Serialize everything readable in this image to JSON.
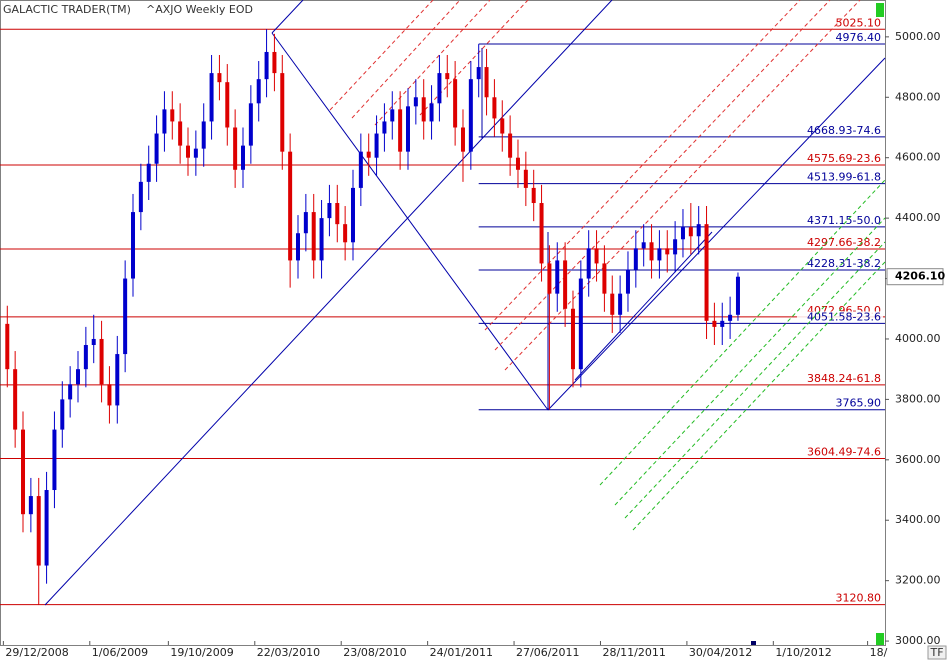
{
  "chart_data": {
    "type": "candlestick",
    "title": "GALACTIC TRADER(TM)",
    "subtitle": "^AXJO Weekly EOD",
    "up_color": "#0000cc",
    "down_color": "#dd0000",
    "x": [
      "2009-01-05",
      "2009-01-19",
      "2009-02-02",
      "2009-02-16",
      "2009-03-02",
      "2009-03-16",
      "2009-03-30",
      "2009-04-13",
      "2009-04-27",
      "2009-05-11",
      "2009-05-25",
      "2009-06-08",
      "2009-06-22",
      "2009-07-06",
      "2009-07-20",
      "2009-08-03",
      "2009-08-17",
      "2009-08-31",
      "2009-09-14",
      "2009-09-28",
      "2009-10-12",
      "2009-10-26",
      "2009-11-09",
      "2009-11-23",
      "2009-12-07",
      "2009-12-21",
      "2010-01-04",
      "2010-01-18",
      "2010-02-01",
      "2010-02-15",
      "2010-03-01",
      "2010-03-15",
      "2010-03-29",
      "2010-04-12",
      "2010-04-26",
      "2010-05-10",
      "2010-05-24",
      "2010-06-07",
      "2010-06-21",
      "2010-07-05",
      "2010-07-19",
      "2010-08-02",
      "2010-08-16",
      "2010-08-30",
      "2010-09-13",
      "2010-09-27",
      "2010-10-11",
      "2010-10-25",
      "2010-11-08",
      "2010-11-22",
      "2010-12-06",
      "2010-12-20",
      "2011-01-03",
      "2011-01-17",
      "2011-01-31",
      "2011-02-14",
      "2011-02-28",
      "2011-03-14",
      "2011-03-28",
      "2011-04-11",
      "2011-04-25",
      "2011-05-09",
      "2011-05-23",
      "2011-06-06",
      "2011-06-20",
      "2011-07-04",
      "2011-07-18",
      "2011-08-01",
      "2011-08-15",
      "2011-08-29",
      "2011-09-12",
      "2011-09-26",
      "2011-10-10",
      "2011-10-24",
      "2011-11-07",
      "2011-11-21",
      "2011-12-05",
      "2011-12-19",
      "2012-01-02",
      "2012-01-16",
      "2012-01-30",
      "2012-02-13",
      "2012-02-27",
      "2012-03-12",
      "2012-03-26",
      "2012-04-09",
      "2012-04-23",
      "2012-05-07",
      "2012-05-21",
      "2012-06-04",
      "2012-06-18",
      "2012-07-02",
      "2012-07-16",
      "2012-07-30"
    ],
    "open": [
      4050,
      3900,
      3700,
      3420,
      3480,
      3250,
      3500,
      3700,
      3800,
      3850,
      3900,
      3980,
      4000,
      3850,
      3780,
      3950,
      4200,
      4420,
      4520,
      4580,
      4680,
      4760,
      4720,
      4640,
      4600,
      4630,
      4720,
      4880,
      4850,
      4700,
      4560,
      4640,
      4780,
      4860,
      4950,
      4880,
      4620,
      4260,
      4350,
      4420,
      4260,
      4400,
      4450,
      4380,
      4320,
      4500,
      4620,
      4600,
      4680,
      4720,
      4760,
      4620,
      4770,
      4800,
      4720,
      4780,
      4880,
      4860,
      4700,
      4620,
      4860,
      4900,
      4800,
      4730,
      4680,
      4600,
      4560,
      4500,
      4450,
      4250,
      4150,
      4260,
      4100,
      3900,
      4200,
      4300,
      4250,
      4150,
      4080,
      4150,
      4230,
      4300,
      4320,
      4260,
      4300,
      4280,
      4330,
      4370,
      4340,
      4380,
      4060,
      4040,
      4060,
      4080
    ],
    "high": [
      4110,
      3960,
      3760,
      3540,
      3540,
      3560,
      3760,
      3860,
      3910,
      3960,
      4040,
      4080,
      4060,
      3910,
      4010,
      4260,
      4480,
      4580,
      4640,
      4740,
      4820,
      4820,
      4780,
      4700,
      4690,
      4780,
      4940,
      4940,
      4910,
      4760,
      4700,
      4840,
      4920,
      5025,
      5010,
      4940,
      4680,
      4410,
      4480,
      4480,
      4460,
      4510,
      4510,
      4440,
      4560,
      4680,
      4680,
      4740,
      4780,
      4820,
      4820,
      4830,
      4860,
      4860,
      4840,
      4940,
      4940,
      4920,
      4760,
      4920,
      4976,
      4960,
      4860,
      4790,
      4740,
      4660,
      4620,
      4560,
      4510,
      4310,
      4320,
      4320,
      4160,
      4260,
      4360,
      4360,
      4310,
      4210,
      4210,
      4290,
      4360,
      4380,
      4380,
      4360,
      4360,
      4390,
      4430,
      4450,
      4440,
      4440,
      4120,
      4120,
      4140,
      4220
    ],
    "low": [
      3840,
      3640,
      3360,
      3360,
      3121,
      3190,
      3440,
      3640,
      3740,
      3790,
      3840,
      3920,
      3790,
      3720,
      3720,
      3890,
      4140,
      4360,
      4460,
      4520,
      4620,
      4660,
      4580,
      4540,
      4540,
      4570,
      4660,
      4790,
      4640,
      4500,
      4500,
      4580,
      4720,
      4800,
      4820,
      4560,
      4170,
      4200,
      4290,
      4200,
      4200,
      4340,
      4320,
      4260,
      4260,
      4440,
      4540,
      4540,
      4620,
      4660,
      4560,
      4560,
      4710,
      4660,
      4660,
      4720,
      4800,
      4640,
      4520,
      4560,
      4800,
      4740,
      4670,
      4620,
      4540,
      4500,
      4440,
      4390,
      4190,
      3766,
      4090,
      4040,
      3840,
      3840,
      4140,
      4190,
      4090,
      4020,
      4020,
      4090,
      4170,
      4240,
      4200,
      4200,
      4220,
      4220,
      4270,
      4280,
      4280,
      4000,
      3980,
      3980,
      4000,
      4060
    ],
    "close": [
      3900,
      3700,
      3420,
      3480,
      3250,
      3500,
      3700,
      3800,
      3850,
      3900,
      3980,
      4000,
      3850,
      3780,
      3950,
      4200,
      4420,
      4520,
      4580,
      4680,
      4760,
      4720,
      4640,
      4600,
      4630,
      4720,
      4880,
      4850,
      4700,
      4560,
      4640,
      4780,
      4860,
      4950,
      4880,
      4620,
      4260,
      4350,
      4420,
      4260,
      4400,
      4450,
      4380,
      4320,
      4500,
      4620,
      4600,
      4680,
      4720,
      4760,
      4620,
      4770,
      4800,
      4720,
      4780,
      4880,
      4860,
      4700,
      4620,
      4860,
      4900,
      4800,
      4730,
      4680,
      4600,
      4560,
      4500,
      4450,
      4250,
      4150,
      4260,
      4100,
      3900,
      4200,
      4300,
      4250,
      4150,
      4080,
      4150,
      4230,
      4300,
      4320,
      4260,
      4300,
      4280,
      4330,
      4370,
      4340,
      4380,
      4060,
      4040,
      4060,
      4080,
      4206
    ],
    "ylim": [
      2987,
      5122
    ],
    "yticks": [
      {
        "value": 3000,
        "label": "3000.00"
      },
      {
        "value": 3200,
        "label": "3200.00"
      },
      {
        "value": 3400,
        "label": "3400.00"
      },
      {
        "value": 3600,
        "label": "3600.00"
      },
      {
        "value": 3800,
        "label": "3800.00"
      },
      {
        "value": 4000,
        "label": "4000.00"
      },
      {
        "value": 4200,
        "label": "4200.00"
      },
      {
        "value": 4400,
        "label": "4400.00"
      },
      {
        "value": 4600,
        "label": "4600.00"
      },
      {
        "value": 4800,
        "label": "4800.00"
      },
      {
        "value": 5000,
        "label": "5000.00"
      }
    ],
    "xlim": [
      "2008-12-23",
      "2013-04-18"
    ],
    "xticks": [
      {
        "value": "2008-12-29",
        "label": "29/12/2008"
      },
      {
        "value": "2009-06-01",
        "label": "1/06/2009"
      },
      {
        "value": "2009-10-19",
        "label": "19/10/2009"
      },
      {
        "value": "2010-03-22",
        "label": "22/03/2010"
      },
      {
        "value": "2010-08-23",
        "label": "23/08/2010"
      },
      {
        "value": "2011-01-24",
        "label": "24/01/2011"
      },
      {
        "value": "2011-06-27",
        "label": "27/06/2011"
      },
      {
        "value": "2011-11-28",
        "label": "28/11/2011"
      },
      {
        "value": "2012-04-30",
        "label": "30/04/2012"
      },
      {
        "value": "2012-10-01",
        "label": "1/10/2012"
      },
      {
        "value": "2013-03-18",
        "label": "18/"
      }
    ],
    "last_price": {
      "value": 4206.1,
      "label": "4206.10"
    },
    "levels": [
      {
        "value": 5025.1,
        "label": "5025.10",
        "color": "#cc0000"
      },
      {
        "value": 4575.69,
        "label": "4575.69-23.6",
        "color": "#cc0000"
      },
      {
        "value": 4297.66,
        "label": "4297.66-38.2",
        "color": "#cc0000"
      },
      {
        "value": 4072.96,
        "label": "4072.96-50.0",
        "color": "#cc0000"
      },
      {
        "value": 3848.24,
        "label": "3848.24-61.8",
        "color": "#cc0000"
      },
      {
        "value": 3604.49,
        "label": "3604.49-74.6",
        "color": "#cc0000"
      },
      {
        "value": 3120.8,
        "label": "3120.80",
        "color": "#cc0000"
      },
      {
        "value": 4976.4,
        "label": "4976.40",
        "color": "#000099",
        "from": "2011-04-25"
      },
      {
        "value": 4668.93,
        "label": "4668.93-74.6",
        "color": "#000099",
        "from": "2011-04-25"
      },
      {
        "value": 4513.99,
        "label": "4513.99-61.8",
        "color": "#000099",
        "from": "2011-04-25"
      },
      {
        "value": 4371.15,
        "label": "4371.15-50.0",
        "color": "#000099",
        "from": "2011-04-25"
      },
      {
        "value": 4228.31,
        "label": "4228.31-38.2",
        "color": "#000099",
        "from": "2011-04-25"
      },
      {
        "value": 4051.58,
        "label": "4051.58-23.6",
        "color": "#000099",
        "from": "2011-04-25"
      },
      {
        "value": 3765.9,
        "label": "3765.90",
        "color": "#000099",
        "from": "2011-04-25"
      }
    ]
  }
}
